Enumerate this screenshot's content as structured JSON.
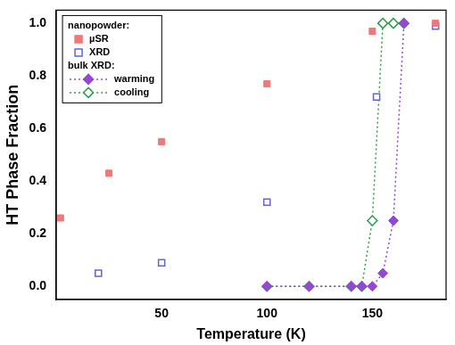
{
  "chart_data": {
    "type": "scatter",
    "x_label": "Temperature (K)",
    "y_label": "HT Phase Fraction",
    "xlim": [
      0,
      185
    ],
    "xticks": [
      50,
      100,
      150
    ],
    "ylim": [
      -0.05,
      1.05
    ],
    "yticks": [
      {
        "value": 0,
        "label": "0.0"
      },
      {
        "value": 0.2,
        "label": "0.2"
      },
      {
        "value": 0.4,
        "label": "0.4"
      },
      {
        "value": 0.6,
        "label": "0.6"
      },
      {
        "value": 0.8,
        "label": "0.8"
      },
      {
        "value": 1,
        "label": "1.0"
      }
    ],
    "grid": false,
    "legend": "upper left",
    "series": [
      {
        "name": "µSR",
        "group": "nanopowder:",
        "color": "#f07878",
        "marker": "square",
        "line_style": "none",
        "x": [
          2,
          25,
          50,
          100,
          150,
          180
        ],
        "values": [
          0.26,
          0.43,
          0.55,
          0.77,
          0.97,
          1.0
        ]
      },
      {
        "name": "XRD",
        "group": "nanopowder:",
        "color": "#6464d8",
        "marker": "square_open",
        "line_style": "none",
        "x": [
          20,
          50,
          100,
          152,
          180
        ],
        "values": [
          0.05,
          0.09,
          0.32,
          0.72,
          0.99
        ]
      },
      {
        "name": "warming",
        "group": "bulk XRD:",
        "color": "#9448d4",
        "marker": "diamond",
        "line_style": "dotted",
        "x": [
          100,
          120,
          140,
          145,
          150,
          155,
          160,
          165
        ],
        "values": [
          0,
          0,
          0,
          0,
          0,
          0.05,
          0.25,
          1.0
        ]
      },
      {
        "name": "cooling",
        "group": "bulk XRD:",
        "color": "#2e9e4a",
        "marker": "diamond_open",
        "line_style": "dotted",
        "x": [
          100,
          120,
          140,
          145,
          150,
          155,
          160,
          165
        ],
        "values": [
          0,
          0,
          0,
          0,
          0.25,
          1.0,
          1.0,
          1.0
        ]
      }
    ]
  }
}
